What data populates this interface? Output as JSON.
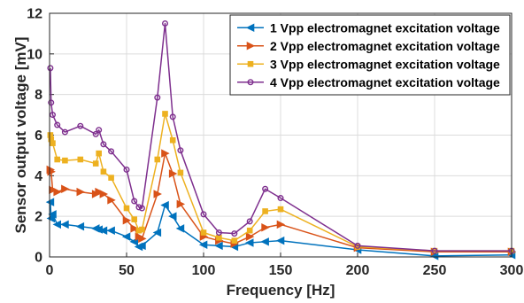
{
  "chart_data": {
    "type": "line",
    "xlabel": "Frequency [Hz]",
    "ylabel": "Sensor output voltage [mV]",
    "xlim": [
      0,
      300
    ],
    "ylim": [
      0,
      12
    ],
    "xticks": [
      "0",
      "50",
      "100",
      "150",
      "200",
      "250",
      "300"
    ],
    "yticks": [
      "0",
      "2",
      "4",
      "6",
      "8",
      "10",
      "12"
    ],
    "grid": true,
    "legend_position": "top-right",
    "x": [
      0.5,
      1,
      2,
      5,
      10,
      20,
      30,
      32,
      35,
      40,
      50,
      55,
      58,
      60,
      70,
      75,
      80,
      85,
      100,
      110,
      120,
      130,
      140,
      150,
      200,
      250,
      300
    ],
    "series": [
      {
        "name": "1 Vpp electromagnet excitation voltage",
        "color": "#0072BD",
        "marker": "left-triangle",
        "values": [
          2.7,
          1.9,
          2.1,
          1.6,
          1.6,
          1.5,
          1.4,
          1.35,
          1.3,
          1.3,
          1.0,
          0.75,
          0.5,
          0.55,
          1.2,
          2.55,
          2.0,
          1.4,
          0.6,
          0.55,
          0.5,
          0.7,
          0.75,
          0.8,
          0.35,
          0.05,
          0.1
        ]
      },
      {
        "name": "2 Vpp electromagnet excitation voltage",
        "color": "#D95319",
        "marker": "right-triangle",
        "values": [
          4.3,
          4.2,
          3.3,
          3.2,
          3.35,
          3.2,
          3.1,
          3.2,
          3.1,
          2.8,
          1.8,
          1.4,
          1.0,
          0.9,
          3.1,
          5.1,
          4.1,
          2.6,
          1.0,
          0.8,
          0.65,
          1.0,
          1.45,
          1.6,
          0.45,
          0.25,
          0.25
        ]
      },
      {
        "name": "3 Vpp electromagnet excitation voltage",
        "color": "#EDB120",
        "marker": "square",
        "values": [
          6.0,
          5.8,
          5.6,
          4.8,
          4.75,
          4.8,
          4.6,
          5.1,
          4.2,
          3.9,
          2.4,
          1.85,
          1.3,
          1.35,
          4.8,
          7.05,
          5.75,
          4.15,
          1.2,
          0.95,
          0.8,
          1.3,
          2.25,
          2.35,
          0.5,
          0.3,
          0.3
        ]
      },
      {
        "name": "4 Vpp electromagnet excitation voltage",
        "color": "#7E2F8E",
        "marker": "circle",
        "values": [
          9.3,
          7.6,
          7.0,
          6.5,
          6.15,
          6.45,
          6.05,
          6.25,
          5.55,
          5.2,
          4.3,
          2.75,
          2.45,
          2.4,
          7.85,
          11.5,
          6.9,
          5.25,
          2.1,
          1.2,
          1.15,
          1.75,
          3.35,
          2.9,
          0.55,
          0.3,
          0.3
        ]
      }
    ]
  }
}
